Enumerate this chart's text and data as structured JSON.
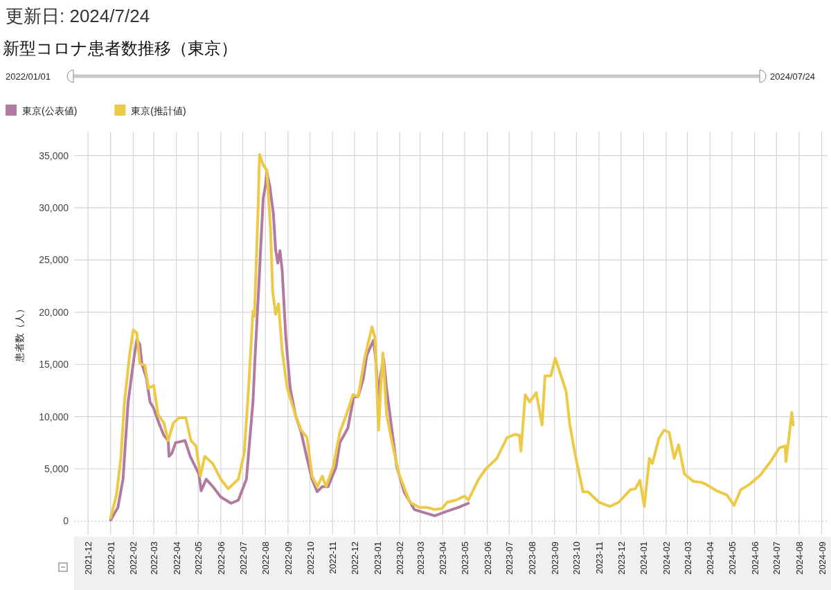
{
  "chart_data": {
    "type": "line",
    "subtitle": "更新日: 2024/7/24",
    "title": "新型コロナ患者数推移（東京）",
    "ylabel": "患者数（人）",
    "annotations": [
      "2022/01/01",
      "2024/07/24"
    ],
    "xlim": [
      "2021-11-12",
      "2024-09-09"
    ],
    "xticks": [
      "2021-12",
      "2022-01",
      "2022-02",
      "2022-03",
      "2022-04",
      "2022-05",
      "2022-06",
      "2022-07",
      "2022-08",
      "2022-09",
      "2022-10",
      "2022-11",
      "2022-12",
      "2023-01",
      "2023-02",
      "2023-03",
      "2023-04",
      "2023-05",
      "2023-06",
      "2023-07",
      "2023-08",
      "2023-09",
      "2023-10",
      "2023-11",
      "2023-12",
      "2024-01",
      "2024-02",
      "2024-03",
      "2024-04",
      "2024-05",
      "2024-06",
      "2024-07",
      "2024-08",
      "2024-09"
    ],
    "ylim": [
      -1300,
      37300
    ],
    "yticks": [
      {
        "value": 0,
        "label": "0"
      },
      {
        "value": 5000,
        "label": "5,000"
      },
      {
        "value": 10000,
        "label": "10,000"
      },
      {
        "value": 15000,
        "label": "15,000"
      },
      {
        "value": 20000,
        "label": "20,000"
      },
      {
        "value": 25000,
        "label": "25,000"
      },
      {
        "value": 30000,
        "label": "30,000"
      },
      {
        "value": 35000,
        "label": "35,000"
      }
    ],
    "grid": true,
    "ref_lines": [
      {
        "axis": "y",
        "value": 0,
        "color": "#bbbbbb",
        "line_style": "dotted"
      }
    ],
    "legend": "top left",
    "line_style": "solid",
    "marker": "none",
    "series": [
      {
        "name": "東京(公表値)",
        "color": "#b07aa1",
        "x": [
          "2022-01-01",
          "2022-01-11",
          "2022-01-18",
          "2022-01-25",
          "2022-02-02",
          "2022-02-06",
          "2022-02-10",
          "2022-02-13",
          "2022-02-19",
          "2022-02-24",
          "2022-03-01",
          "2022-03-08",
          "2022-03-15",
          "2022-03-21",
          "2022-03-22",
          "2022-03-26",
          "2022-03-31",
          "2022-04-13",
          "2022-04-20",
          "2022-04-27",
          "2022-05-02",
          "2022-05-05",
          "2022-05-12",
          "2022-05-21",
          "2022-06-01",
          "2022-06-15",
          "2022-06-25",
          "2022-07-06",
          "2022-07-15",
          "2022-07-18",
          "2022-07-23",
          "2022-07-29",
          "2022-08-01",
          "2022-08-03",
          "2022-08-07",
          "2022-08-12",
          "2022-08-15",
          "2022-08-18",
          "2022-08-21",
          "2022-08-24",
          "2022-08-29",
          "2022-09-04",
          "2022-09-11",
          "2022-09-19",
          "2022-09-27",
          "2022-10-04",
          "2022-10-11",
          "2022-10-18",
          "2022-10-26",
          "2022-11-06",
          "2022-11-11",
          "2022-11-22",
          "2022-11-30",
          "2022-12-06",
          "2022-12-13",
          "2022-12-18",
          "2022-12-27",
          "2022-12-30",
          "2023-01-03",
          "2023-01-06",
          "2023-01-10",
          "2023-01-14",
          "2023-01-21",
          "2023-01-28",
          "2023-02-07",
          "2023-02-21",
          "2023-03-07",
          "2023-03-21",
          "2023-04-05",
          "2023-04-22",
          "2023-05-06"
        ],
        "values": [
          100,
          1300,
          4000,
          11400,
          15600,
          17400,
          16900,
          15000,
          13700,
          11400,
          10800,
          9400,
          8200,
          7700,
          6200,
          6500,
          7500,
          7700,
          6200,
          5200,
          4500,
          2900,
          4000,
          3300,
          2300,
          1700,
          2000,
          4000,
          11400,
          15900,
          22500,
          30900,
          32100,
          33400,
          32100,
          29400,
          26000,
          24700,
          25900,
          24000,
          17600,
          12700,
          10200,
          8500,
          6000,
          4000,
          2800,
          3300,
          3300,
          5200,
          7500,
          8900,
          11900,
          11900,
          13600,
          15900,
          17300,
          15600,
          11700,
          14100,
          15500,
          12700,
          8900,
          5200,
          2800,
          1100,
          800,
          500,
          900,
          1300,
          1700
        ]
      },
      {
        "name": "東京(推計値)",
        "color": "#edc948",
        "x": [
          "2022-01-01",
          "2022-01-09",
          "2022-01-15",
          "2022-01-20",
          "2022-01-27",
          "2022-02-01",
          "2022-02-06",
          "2022-02-10",
          "2022-02-17",
          "2022-02-22",
          "2022-03-01",
          "2022-03-07",
          "2022-03-15",
          "2022-03-21",
          "2022-03-28",
          "2022-04-05",
          "2022-04-14",
          "2022-04-21",
          "2022-04-28",
          "2022-05-04",
          "2022-05-10",
          "2022-05-21",
          "2022-06-01",
          "2022-06-11",
          "2022-06-25",
          "2022-07-03",
          "2022-07-09",
          "2022-07-15",
          "2022-07-17",
          "2022-07-22",
          "2022-07-24",
          "2022-07-29",
          "2022-08-03",
          "2022-08-08",
          "2022-08-11",
          "2022-08-15",
          "2022-08-19",
          "2022-08-24",
          "2022-08-31",
          "2022-09-11",
          "2022-09-19",
          "2022-09-27",
          "2022-10-04",
          "2022-10-11",
          "2022-10-18",
          "2022-10-23",
          "2022-11-02",
          "2022-11-11",
          "2022-11-20",
          "2022-11-29",
          "2022-12-06",
          "2022-12-15",
          "2022-12-25",
          "2022-12-29",
          "2023-01-03",
          "2023-01-06",
          "2023-01-09",
          "2023-01-14",
          "2023-01-21",
          "2023-01-31",
          "2023-02-15",
          "2023-02-28",
          "2023-03-11",
          "2023-03-21",
          "2023-03-31",
          "2023-04-07",
          "2023-04-19",
          "2023-05-01",
          "2023-05-06",
          "2023-05-20",
          "2023-05-30",
          "2023-06-14",
          "2023-06-28",
          "2023-07-09",
          "2023-07-15",
          "2023-07-17",
          "2023-07-23",
          "2023-07-29",
          "2023-08-07",
          "2023-08-15",
          "2023-08-19",
          "2023-08-27",
          "2023-09-02",
          "2023-09-10",
          "2023-09-17",
          "2023-09-22",
          "2023-09-29",
          "2023-10-10",
          "2023-10-17",
          "2023-11-01",
          "2023-11-16",
          "2023-11-28",
          "2023-12-14",
          "2023-12-21",
          "2023-12-27",
          "2024-01-02",
          "2024-01-09",
          "2024-01-13",
          "2024-01-22",
          "2024-01-29",
          "2024-02-05",
          "2024-02-12",
          "2024-02-18",
          "2024-02-26",
          "2024-03-09",
          "2024-03-20",
          "2024-03-27",
          "2024-04-10",
          "2024-04-24",
          "2024-05-04",
          "2024-05-13",
          "2024-05-25",
          "2024-06-09",
          "2024-06-23",
          "2024-07-05",
          "2024-07-13",
          "2024-07-14",
          "2024-07-19",
          "2024-07-22",
          "2024-07-24"
        ],
        "values": [
          300,
          2500,
          6000,
          11400,
          15900,
          18300,
          18000,
          15100,
          14900,
          12700,
          13000,
          10200,
          9400,
          7700,
          9400,
          9900,
          9900,
          7700,
          7200,
          4300,
          6200,
          5500,
          4000,
          3100,
          4000,
          6500,
          12700,
          20100,
          19600,
          29900,
          35100,
          34100,
          33600,
          28000,
          22000,
          19800,
          20800,
          16300,
          12700,
          10200,
          8700,
          8000,
          4300,
          3300,
          4300,
          3300,
          5200,
          8500,
          10200,
          12100,
          11900,
          15600,
          18600,
          17600,
          8700,
          12700,
          16100,
          10200,
          7700,
          4500,
          1800,
          1300,
          1300,
          1100,
          1200,
          1800,
          2000,
          2400,
          2000,
          4000,
          5000,
          6000,
          8000,
          8300,
          8200,
          6700,
          12100,
          11400,
          12300,
          9200,
          13900,
          13900,
          15600,
          13900,
          12400,
          9200,
          6500,
          2800,
          2800,
          1800,
          1400,
          1800,
          3000,
          3100,
          3900,
          1400,
          6000,
          5500,
          7900,
          8700,
          8500,
          6000,
          7300,
          4500,
          3800,
          3700,
          3500,
          2900,
          2500,
          1500,
          3000,
          3500,
          4400,
          5700,
          7000,
          7200,
          5700,
          8500,
          10400,
          9200
        ]
      }
    ]
  }
}
